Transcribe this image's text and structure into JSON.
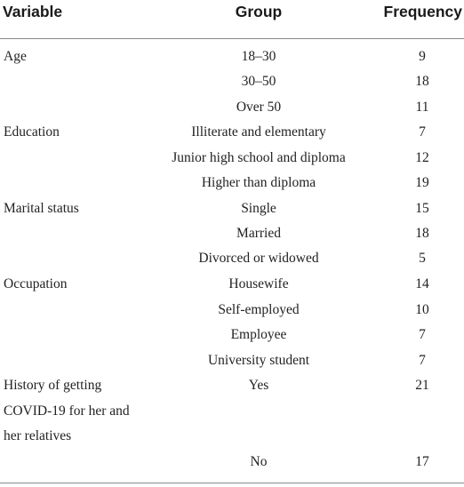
{
  "table": {
    "headers": {
      "variable": "Variable",
      "group": "Group",
      "frequency": "Frequency"
    },
    "rows": [
      {
        "variable": "Age",
        "group": "18–30",
        "frequency": "9"
      },
      {
        "variable": "",
        "group": "30–50",
        "frequency": "18"
      },
      {
        "variable": "",
        "group": "Over 50",
        "frequency": "11"
      },
      {
        "variable": "Education",
        "group": "Illiterate and elementary",
        "frequency": "7"
      },
      {
        "variable": "",
        "group": "Junior high school and diploma",
        "frequency": "12"
      },
      {
        "variable": "",
        "group": "Higher than diploma",
        "frequency": "19"
      },
      {
        "variable": "Marital status",
        "group": "Single",
        "frequency": "15"
      },
      {
        "variable": "",
        "group": "Married",
        "frequency": "18"
      },
      {
        "variable": "",
        "group": "Divorced or widowed",
        "frequency": "5"
      },
      {
        "variable": "Occupation",
        "group": "Housewife",
        "frequency": "14"
      },
      {
        "variable": "",
        "group": "Self-employed",
        "frequency": "10"
      },
      {
        "variable": "",
        "group": "Employee",
        "frequency": "7"
      },
      {
        "variable": "",
        "group": "University student",
        "frequency": "7"
      },
      {
        "variable": "History of getting",
        "group": "Yes",
        "frequency": "21"
      },
      {
        "variable": "COVID-19 for her and",
        "group": "",
        "frequency": ""
      },
      {
        "variable": "her relatives",
        "group": "",
        "frequency": ""
      },
      {
        "variable": "",
        "group": "No",
        "frequency": "17"
      }
    ]
  }
}
